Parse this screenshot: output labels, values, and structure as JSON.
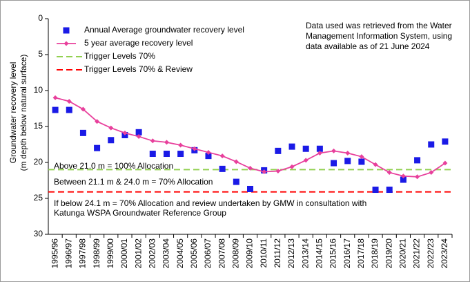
{
  "chart_data": {
    "type": "line",
    "y_label": [
      "Groundwater recovery level",
      "(m depth below natural surface)"
    ],
    "categories": [
      "1995/96",
      "1996/97",
      "1997/98",
      "1998/99",
      "1999/00",
      "2000/01",
      "2001/02",
      "2002/03",
      "2003/04",
      "2004/05",
      "2005/06",
      "2006/07",
      "2007/08",
      "2008/09",
      "2009/10",
      "2010/11",
      "2011/12",
      "2012/13",
      "2013/14",
      "2014/15",
      "2015/16",
      "2016/17",
      "2017/18",
      "2018/19",
      "2019/20",
      "2020/21",
      "2021/22",
      "2022/23",
      "2023/24"
    ],
    "series": [
      {
        "name": "Annual Average groundwater recovery level",
        "color": "#1a1ae6",
        "marker": "square",
        "line": false,
        "values": [
          12.7,
          12.7,
          15.9,
          18.0,
          16.9,
          16.2,
          15.8,
          18.8,
          18.8,
          18.8,
          18.3,
          19.1,
          20.9,
          22.7,
          23.7,
          21.1,
          18.4,
          17.8,
          18.1,
          18.1,
          20.1,
          19.8,
          19.9,
          23.8,
          23.8,
          22.4,
          19.7,
          17.5,
          17.1
        ]
      },
      {
        "name": "5 year average recovery level",
        "color": "#e8409c",
        "marker": "diamond",
        "line": true,
        "values": [
          11.0,
          11.5,
          12.6,
          14.3,
          15.2,
          15.9,
          16.4,
          17.0,
          17.2,
          17.6,
          18.1,
          18.6,
          19.1,
          19.9,
          20.8,
          21.3,
          21.2,
          20.6,
          19.7,
          18.7,
          18.4,
          18.7,
          19.2,
          20.3,
          21.4,
          21.9,
          22.0,
          21.4,
          20.1
        ]
      }
    ],
    "reference_lines": [
      {
        "name": "Trigger Levels 70%",
        "color": "#92d050",
        "value": 21.0
      },
      {
        "name": "Trigger Levels 70% & Review",
        "color": "#ff0000",
        "value": 24.1
      }
    ],
    "ylim": [
      0,
      30
    ],
    "y_inverted": true,
    "yticks": [
      0,
      5,
      10,
      15,
      20,
      25,
      30
    ],
    "annotations": [
      [
        "Above 21.0 m = 100% Allocation"
      ],
      [
        "Between 21.1 m & 24.0 m = 70% Allocation"
      ],
      [
        "If below 24.1 m = 70% Allocation and review undertaken by GMW in consultation with",
        "Katunga WSPA Groundwater Reference Group"
      ]
    ],
    "note": [
      "Data used was retrieved from the Water",
      "Management Information System, using",
      "data available as of 21 June 2024"
    ]
  }
}
